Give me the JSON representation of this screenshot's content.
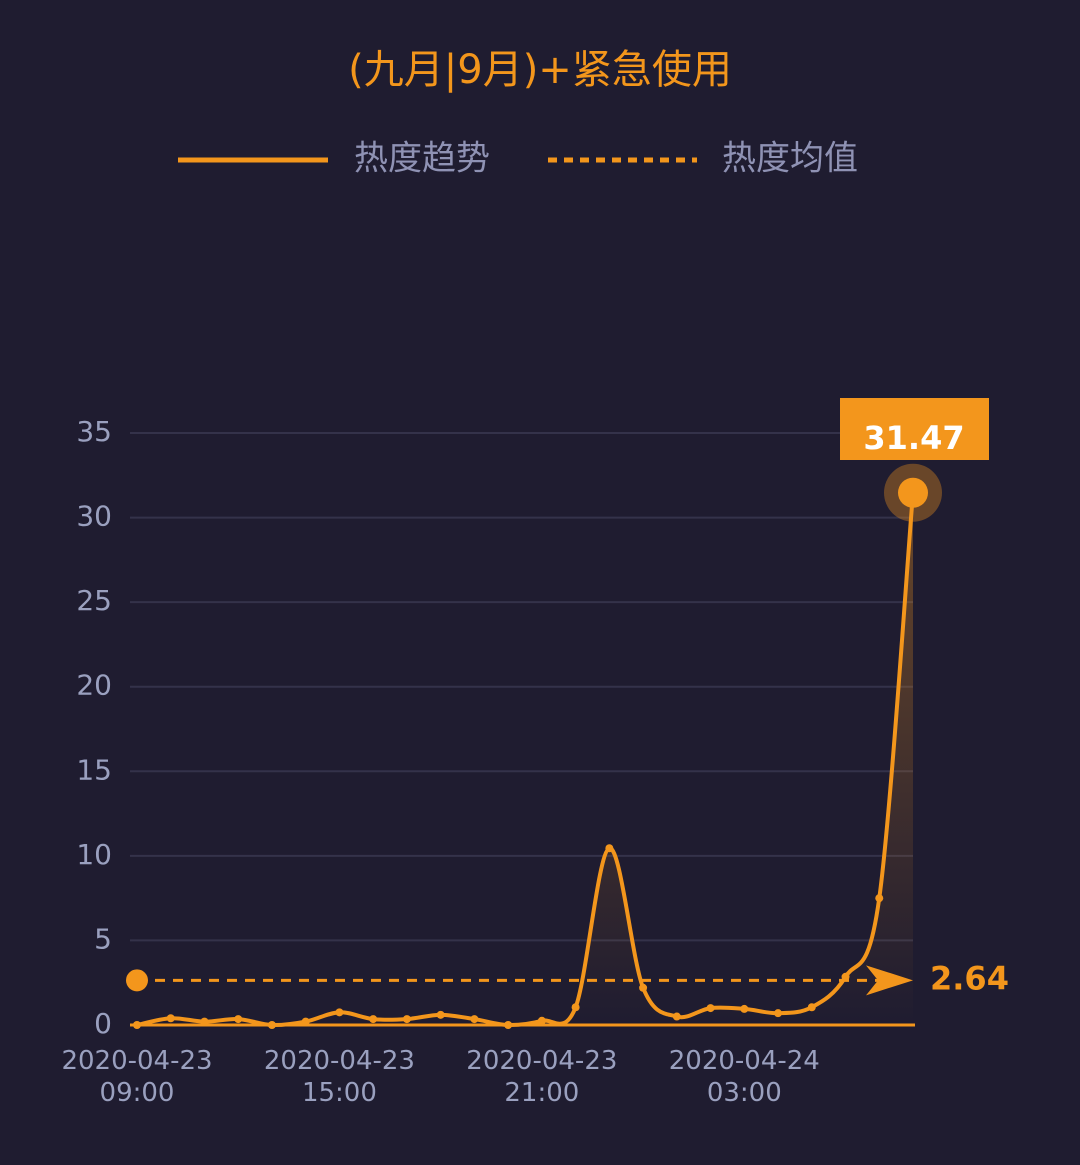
{
  "chart_data": {
    "type": "line",
    "title": "(九月|9月)+紧急使用",
    "categories": [
      "2020-04-23 09:00",
      null,
      null,
      null,
      null,
      null,
      "2020-04-23 15:00",
      null,
      null,
      null,
      null,
      null,
      "2020-04-23 21:00",
      null,
      null,
      null,
      null,
      null,
      "2020-04-24 03:00",
      null,
      null,
      null,
      null,
      null
    ],
    "series": [
      {
        "name": "热度趋势",
        "color": "#f3961c",
        "values": [
          0,
          0.4,
          0.2,
          0.35,
          0,
          0.2,
          0.75,
          0.35,
          0.35,
          0.6,
          0.35,
          0,
          0.25,
          1.05,
          10.45,
          2.2,
          0.5,
          1.0,
          0.95,
          0.7,
          1.05,
          2.85,
          7.5,
          31.47
        ]
      }
    ],
    "mean": {
      "name": "热度均值",
      "value": 2.64
    },
    "ylim": [
      0,
      35
    ],
    "yticks": [
      0,
      5,
      10,
      15,
      20,
      25,
      30,
      35
    ],
    "grid": true
  }
}
